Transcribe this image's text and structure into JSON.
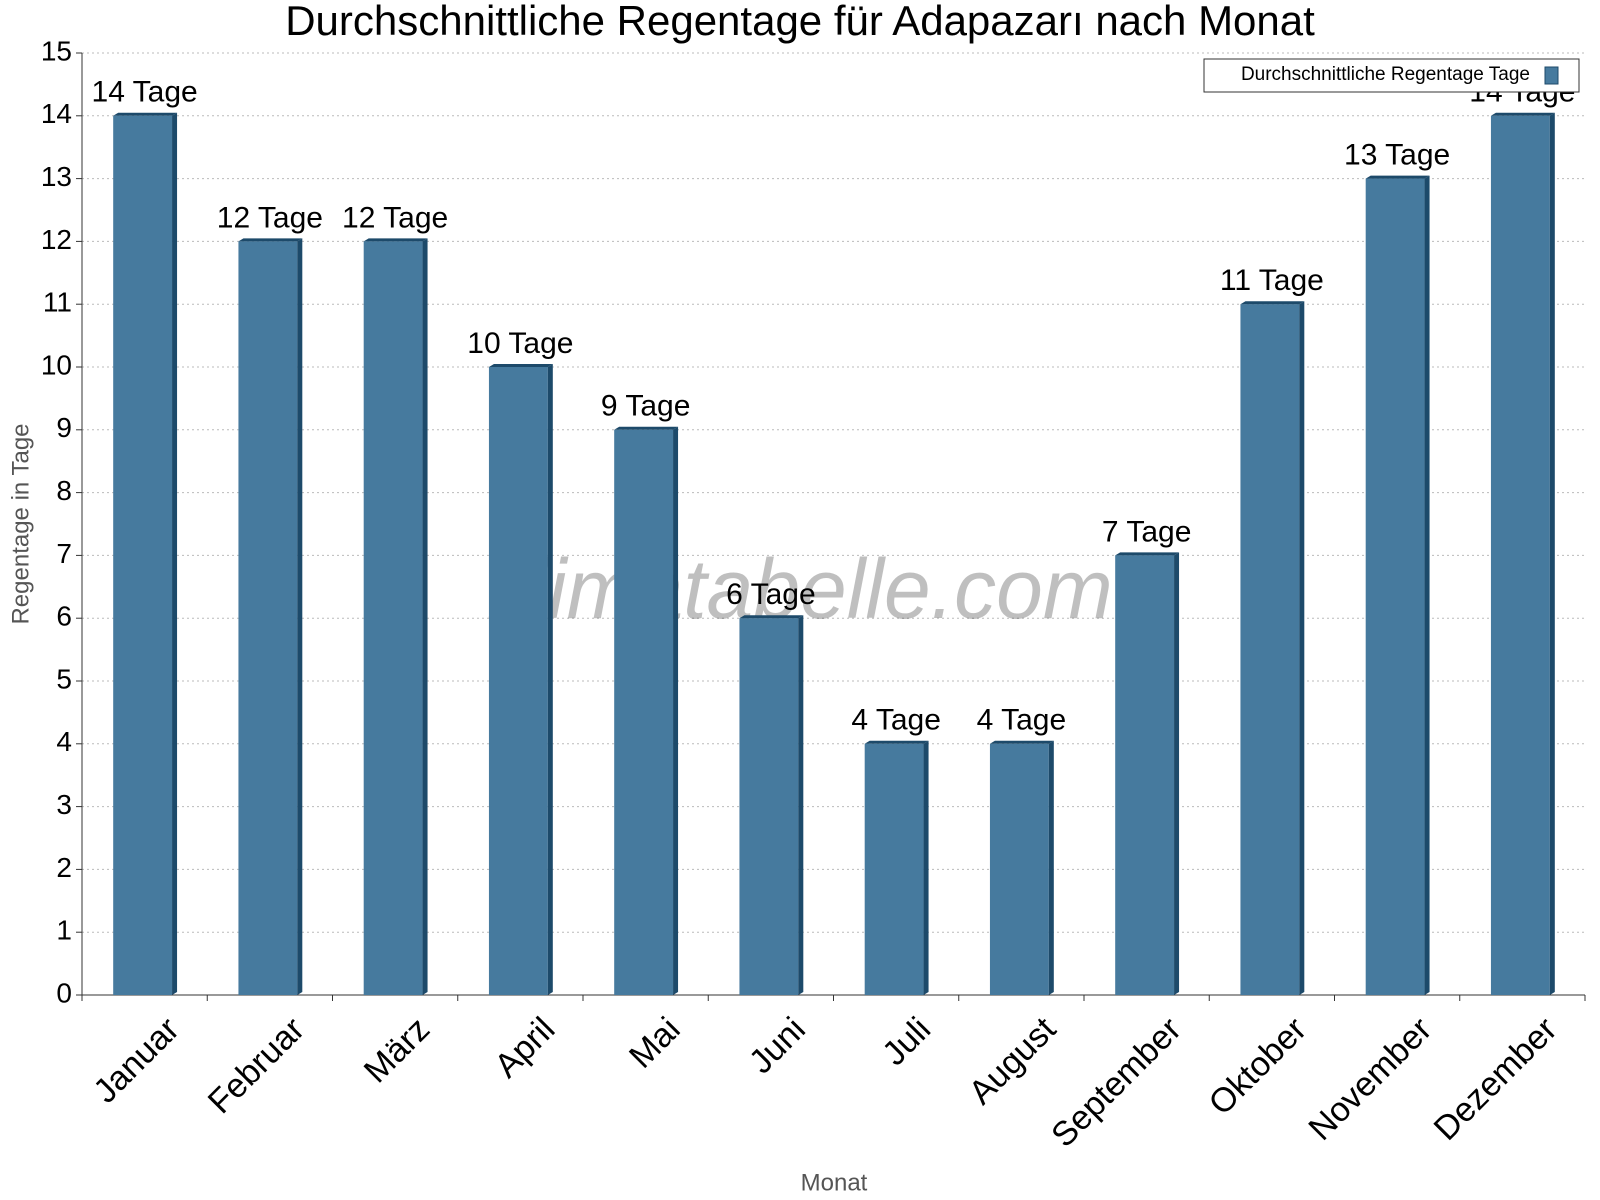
{
  "chart_data": {
    "type": "bar",
    "title": "Durchschnittliche Regentage für Adapazarı nach Monat",
    "x_label": "Monat",
    "y_label": "Regentage in Tage",
    "watermark": "klimatabelle.com",
    "legend_position": "top-right",
    "categories": [
      "Januar",
      "Februar",
      "März",
      "April",
      "Mai",
      "Juni",
      "Juli",
      "August",
      "September",
      "Oktober",
      "November",
      "Dezember"
    ],
    "series": [
      {
        "name": "Durchschnittliche Regentage Tage",
        "color": "#467a9e",
        "values": [
          14,
          12,
          12,
          10,
          9,
          6,
          4,
          4,
          7,
          11,
          13,
          14
        ],
        "value_labels": [
          "14 Tage",
          "12 Tage",
          "12 Tage",
          "10 Tage",
          "9 Tage",
          "6 Tage",
          "4 Tage",
          "4 Tage",
          "7 Tage",
          "11 Tage",
          "13 Tage",
          "14 Tage"
        ]
      }
    ],
    "ylim": [
      0,
      15
    ],
    "yticks": [
      0,
      1,
      2,
      3,
      4,
      5,
      6,
      7,
      8,
      9,
      10,
      11,
      12,
      13,
      14,
      15
    ],
    "grid": true
  }
}
